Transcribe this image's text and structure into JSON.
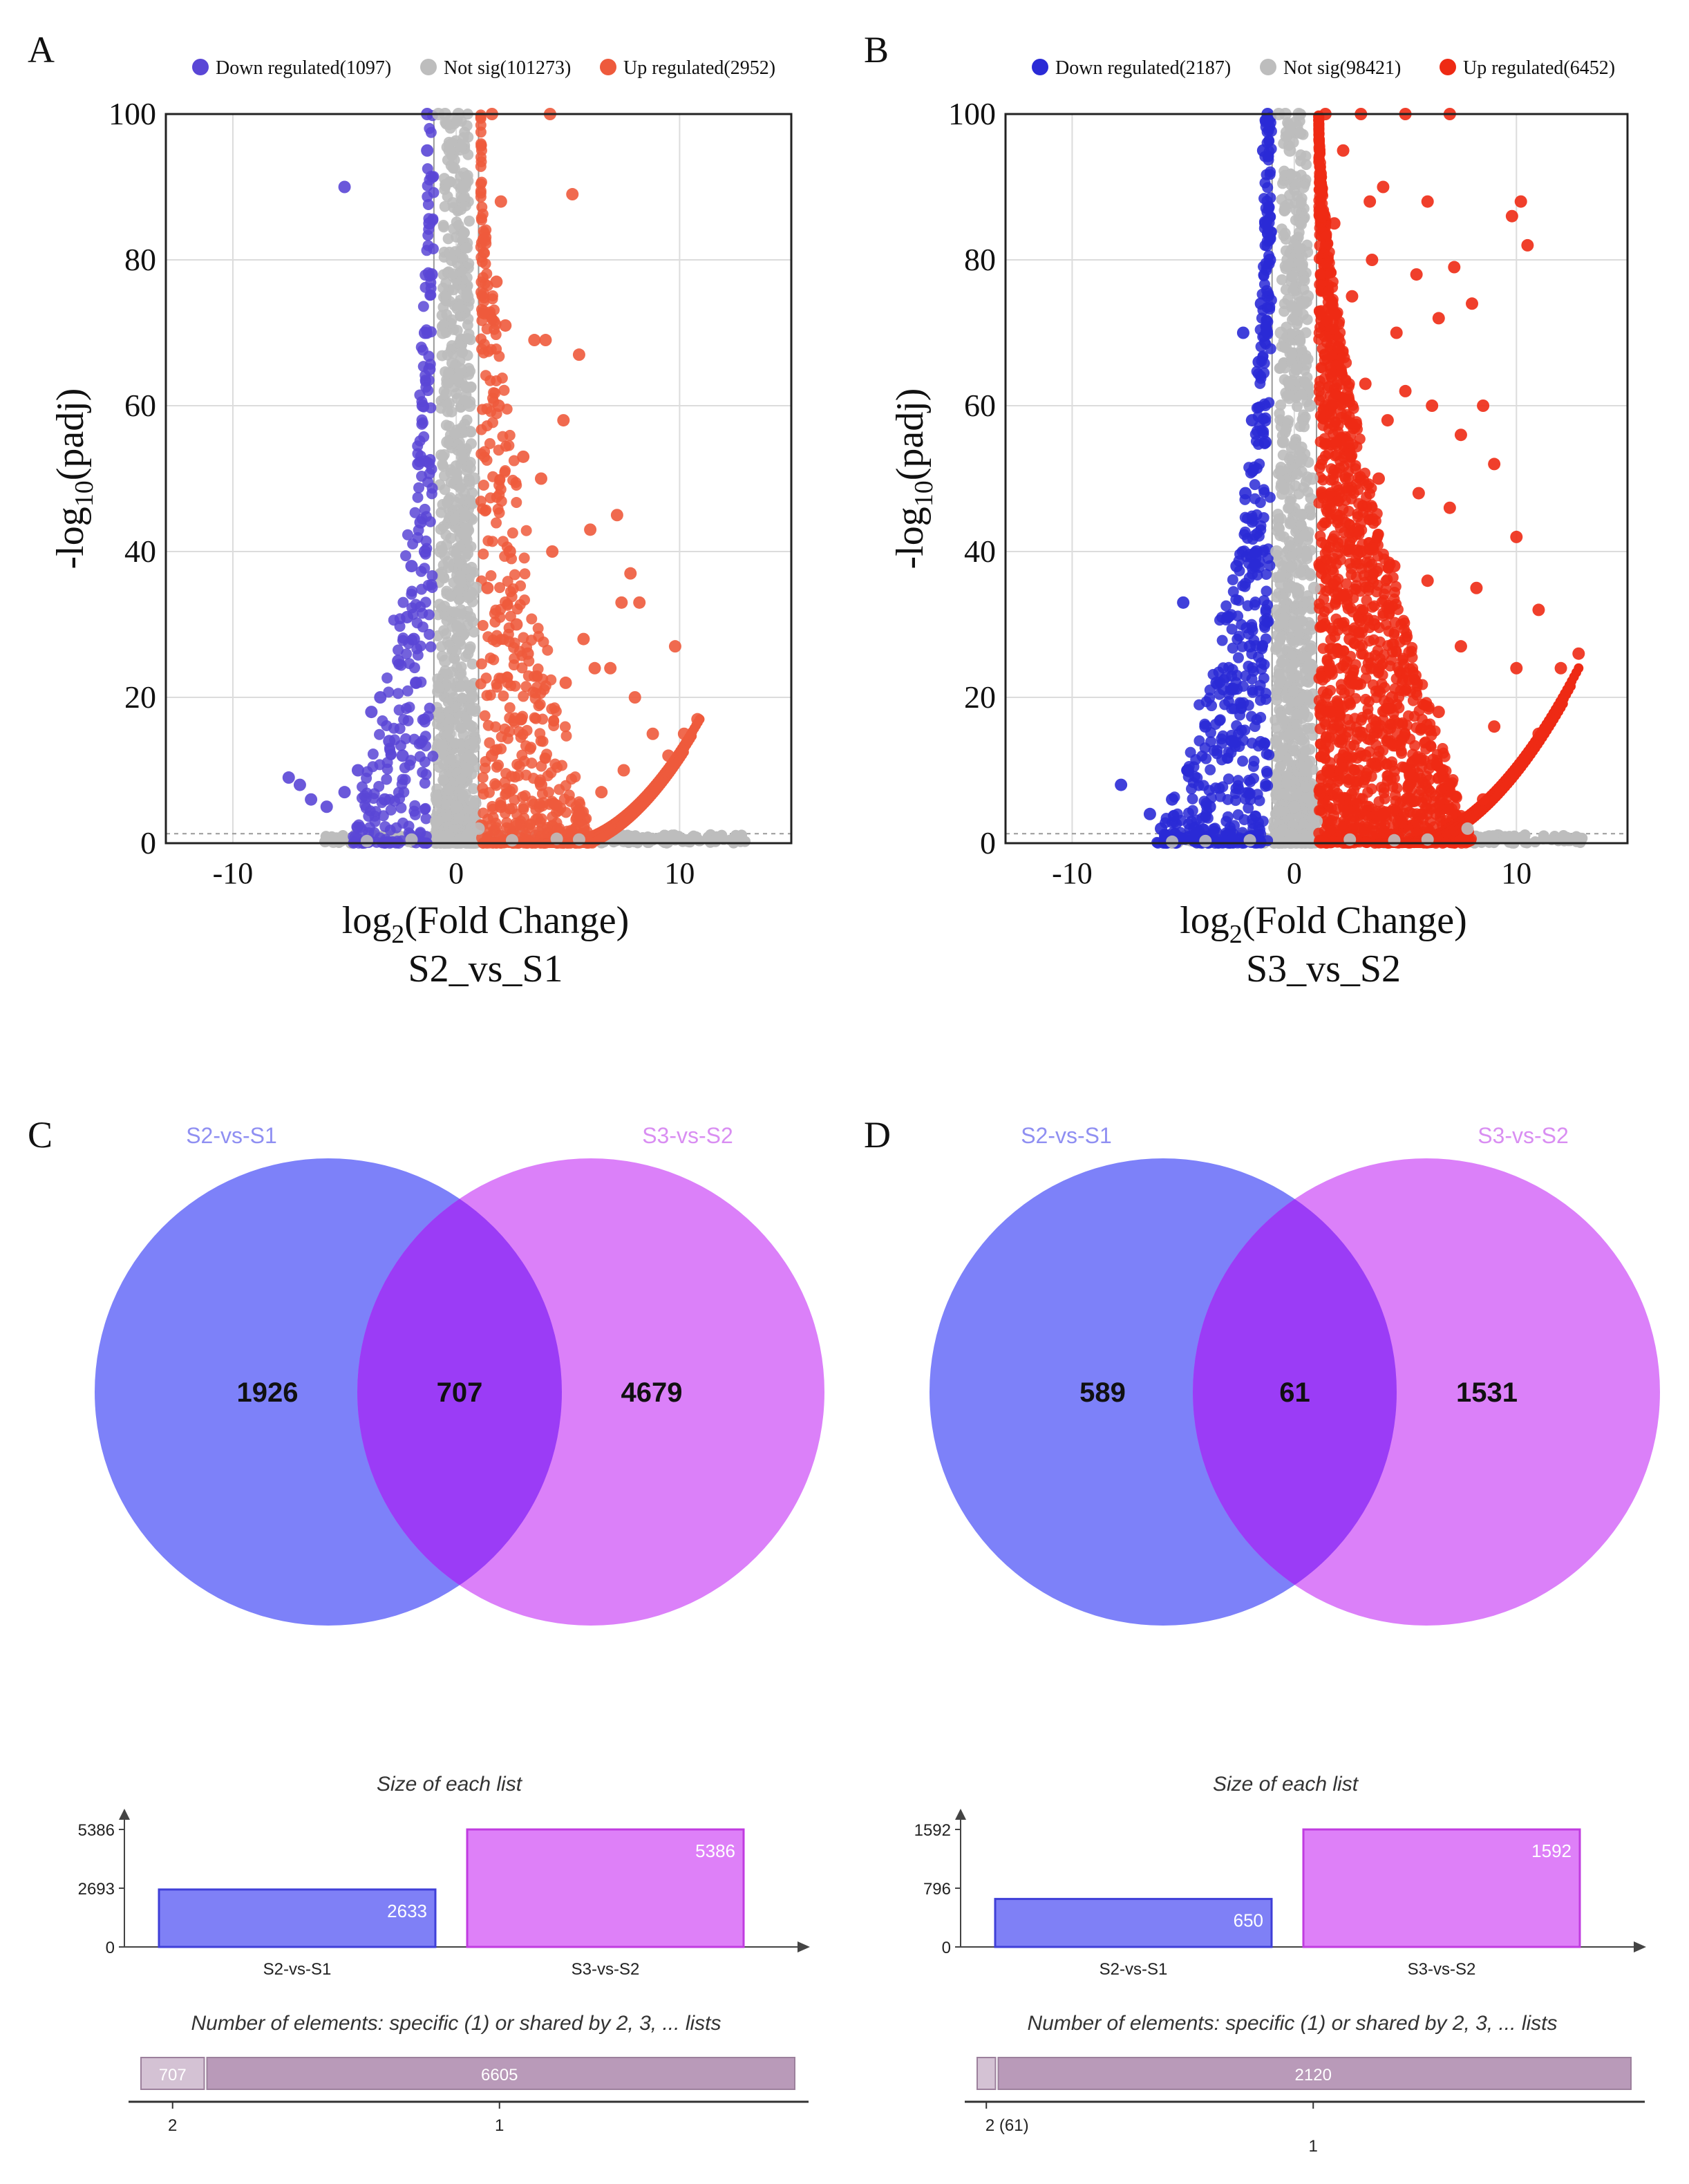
{
  "colors": {
    "down": "#5a46d6",
    "down_b": "#2a2ad6",
    "notsig": "#bdbdbd",
    "up": "#ee5a3c",
    "up_b": "#ee2a14",
    "venn_left": "#6b6ff8",
    "venn_right": "#d66ef8",
    "venn_overlap": "#9b3cf6",
    "venn_label_left": "#8f8ff2",
    "venn_label_right": "#d98ef2",
    "bar_left": "#7f80f6",
    "bar_right": "#de80f8",
    "strip_light": "#d4c2d4",
    "strip_dark": "#b99ab9"
  },
  "chart_data": [
    {
      "panel": "A",
      "type": "scatter",
      "title": "S2_vs_S1",
      "xlabel_main": "log",
      "xlabel_sub": "2",
      "xlabel_tail": "(Fold Change)",
      "ylabel_main": "-log",
      "ylabel_sub": "10",
      "ylabel_tail": "(padj)",
      "xlim": [
        -13,
        15
      ],
      "ylim": [
        0,
        100
      ],
      "xticks": [
        -10,
        0,
        10
      ],
      "yticks": [
        0,
        20,
        40,
        60,
        80,
        100
      ],
      "xtick_labels": [
        "-10",
        "0",
        "10"
      ],
      "ytick_labels": [
        "0",
        "20",
        "40",
        "60",
        "80",
        "100"
      ],
      "grid": true,
      "fc_threshold": 1,
      "padj_line": 1.3,
      "legend": [
        {
          "label": "Down regulated(1097)",
          "group": "down"
        },
        {
          "label": "Not sig(101273)",
          "group": "notsig"
        },
        {
          "label": "Up regulated(2952)",
          "group": "up"
        }
      ],
      "series": [
        {
          "name": "Down regulated",
          "points": [
            [
              -5.0,
              90
            ],
            [
              -7.5,
              9
            ],
            [
              -7.0,
              8
            ],
            [
              -6.5,
              6
            ],
            [
              -5.8,
              5
            ],
            [
              -5.0,
              7
            ],
            [
              -4.4,
              10
            ],
            [
              -3.8,
              18
            ],
            [
              -3.4,
              20
            ],
            [
              -3.0,
              14
            ],
            [
              -2.6,
              25
            ],
            [
              -2.2,
              31
            ],
            [
              -2.0,
              38
            ],
            [
              -1.7,
              52
            ],
            [
              -1.5,
              60
            ],
            [
              -1.4,
              70
            ],
            [
              -1.3,
              100
            ],
            [
              -1.2,
              85
            ],
            [
              -1.6,
              44
            ],
            [
              -1.9,
              28
            ],
            [
              -2.4,
              12
            ],
            [
              -3.2,
              6
            ],
            [
              -1.3,
              95
            ],
            [
              -1.1,
              78
            ],
            [
              -1.2,
              65
            ],
            [
              -1.4,
              40
            ],
            [
              -1.8,
              22
            ]
          ]
        },
        {
          "name": "Not sig",
          "points": [
            [
              -0.8,
              100
            ],
            [
              -0.5,
              100
            ],
            [
              -0.3,
              95
            ],
            [
              0.1,
              100
            ],
            [
              0.3,
              90
            ],
            [
              -0.2,
              80
            ],
            [
              0.5,
              75
            ],
            [
              -0.6,
              70
            ],
            [
              0.2,
              65
            ],
            [
              0.6,
              60
            ],
            [
              -0.4,
              55
            ],
            [
              0.8,
              50
            ],
            [
              0.4,
              45
            ],
            [
              -0.7,
              40
            ],
            [
              0.9,
              35
            ],
            [
              0.1,
              30
            ],
            [
              -0.5,
              25
            ],
            [
              0.7,
              20
            ],
            [
              -0.3,
              15
            ],
            [
              0.5,
              10
            ],
            [
              0,
              5
            ],
            [
              -0.9,
              3
            ],
            [
              1.0,
              2
            ],
            [
              -2,
              0.5
            ],
            [
              -4,
              0.3
            ],
            [
              2.5,
              0.4
            ],
            [
              4.5,
              0.6
            ],
            [
              7.5,
              0.3
            ],
            [
              -5.5,
              0.2
            ],
            [
              5.5,
              0.5
            ]
          ]
        },
        {
          "name": "Up regulated",
          "points": [
            [
              5.2,
              89
            ],
            [
              1.6,
              100
            ],
            [
              4.2,
              100
            ],
            [
              2.0,
              88
            ],
            [
              1.8,
              77
            ],
            [
              3.5,
              69
            ],
            [
              4.0,
              69
            ],
            [
              5.5,
              67
            ],
            [
              2.2,
              71
            ],
            [
              1.9,
              60
            ],
            [
              4.8,
              58
            ],
            [
              3.0,
              53
            ],
            [
              3.8,
              50
            ],
            [
              7.2,
              45
            ],
            [
              6.0,
              43
            ],
            [
              4.3,
              40
            ],
            [
              7.8,
              37
            ],
            [
              7.4,
              33
            ],
            [
              8.2,
              33
            ],
            [
              2.7,
              30
            ],
            [
              5.7,
              28
            ],
            [
              9.8,
              27
            ],
            [
              6.2,
              24
            ],
            [
              6.9,
              24
            ],
            [
              4.9,
              22
            ],
            [
              8.0,
              20
            ],
            [
              8.8,
              15
            ],
            [
              9.5,
              12
            ],
            [
              10.2,
              15
            ],
            [
              10.8,
              17
            ],
            [
              7.5,
              10
            ],
            [
              6.5,
              7
            ],
            [
              5.5,
              4
            ],
            [
              3.2,
              26
            ],
            [
              2.4,
              40
            ],
            [
              2.9,
              17
            ],
            [
              3.8,
              8
            ],
            [
              1.6,
              12
            ],
            [
              2.0,
              5
            ],
            [
              1.4,
              35
            ]
          ]
        }
      ]
    },
    {
      "panel": "B",
      "type": "scatter",
      "title": "S3_vs_S2",
      "xlabel_main": "log",
      "xlabel_sub": "2",
      "xlabel_tail": "(Fold Change)",
      "ylabel_main": "-log",
      "ylabel_sub": "10",
      "ylabel_tail": "(padj)",
      "xlim": [
        -13,
        15
      ],
      "ylim": [
        0,
        100
      ],
      "xticks": [
        -10,
        0,
        10
      ],
      "yticks": [
        0,
        20,
        40,
        60,
        80,
        100
      ],
      "xtick_labels": [
        "-10",
        "0",
        "10"
      ],
      "ytick_labels": [
        "0",
        "20",
        "40",
        "60",
        "80",
        "100"
      ],
      "grid": true,
      "fc_threshold": 1,
      "padj_line": 1.3,
      "legend": [
        {
          "label": "Down regulated(2187)",
          "group": "down"
        },
        {
          "label": "Not sig(98421)",
          "group": "notsig"
        },
        {
          "label": "Up regulated(6452)",
          "group": "up"
        }
      ],
      "series": [
        {
          "name": "Down regulated",
          "points": [
            [
              -2.3,
              70
            ],
            [
              -5.0,
              33
            ],
            [
              -7.8,
              8
            ],
            [
              -6.5,
              4
            ],
            [
              -5.5,
              6
            ],
            [
              -4.8,
              10
            ],
            [
              -4.0,
              16
            ],
            [
              -3.5,
              22
            ],
            [
              -3.0,
              31
            ],
            [
              -2.6,
              38
            ],
            [
              -2.2,
              48
            ],
            [
              -1.9,
              58
            ],
            [
              -1.6,
              66
            ],
            [
              -1.5,
              74
            ],
            [
              -1.3,
              85
            ],
            [
              -1.2,
              100
            ],
            [
              -1.4,
              95
            ],
            [
              -1.1,
              80
            ],
            [
              -1.7,
              40
            ],
            [
              -2.0,
              27
            ],
            [
              -2.8,
              14
            ],
            [
              -3.8,
              5
            ],
            [
              -4.5,
              2
            ],
            [
              -6.0,
              2
            ],
            [
              -1.3,
              55
            ]
          ]
        },
        {
          "name": "Not sig",
          "points": [
            [
              -0.7,
              100
            ],
            [
              -0.4,
              100
            ],
            [
              -0.2,
              95
            ],
            [
              0.2,
              100
            ],
            [
              0.4,
              90
            ],
            [
              -0.3,
              80
            ],
            [
              0.6,
              75
            ],
            [
              -0.6,
              70
            ],
            [
              0.1,
              65
            ],
            [
              0.7,
              60
            ],
            [
              -0.5,
              55
            ],
            [
              0.8,
              50
            ],
            [
              0.3,
              45
            ],
            [
              -0.8,
              40
            ],
            [
              0.9,
              35
            ],
            [
              0.0,
              30
            ],
            [
              -0.5,
              25
            ],
            [
              0.6,
              20
            ],
            [
              -0.2,
              15
            ],
            [
              0.5,
              10
            ],
            [
              0.0,
              5
            ],
            [
              1.0,
              3
            ],
            [
              -2,
              0.4
            ],
            [
              -4,
              0.3
            ],
            [
              2.5,
              0.5
            ],
            [
              4.5,
              0.4
            ],
            [
              7.8,
              2
            ],
            [
              -5.5,
              0.2
            ],
            [
              6.0,
              0.5
            ]
          ]
        },
        {
          "name": "Up regulated",
          "points": [
            [
              1.4,
              100
            ],
            [
              3.0,
              100
            ],
            [
              5.0,
              100
            ],
            [
              7.0,
              100
            ],
            [
              2.2,
              95
            ],
            [
              4.0,
              90
            ],
            [
              6.0,
              88
            ],
            [
              9.8,
              86
            ],
            [
              10.2,
              88
            ],
            [
              10.5,
              82
            ],
            [
              1.8,
              85
            ],
            [
              3.5,
              80
            ],
            [
              5.5,
              78
            ],
            [
              7.2,
              79
            ],
            [
              8.0,
              74
            ],
            [
              2.6,
              75
            ],
            [
              4.6,
              70
            ],
            [
              6.5,
              72
            ],
            [
              2.0,
              68
            ],
            [
              3.2,
              63
            ],
            [
              5.0,
              62
            ],
            [
              6.2,
              60
            ],
            [
              8.5,
              60
            ],
            [
              4.2,
              58
            ],
            [
              7.5,
              56
            ],
            [
              9.0,
              52
            ],
            [
              2.4,
              55
            ],
            [
              3.8,
              50
            ],
            [
              5.6,
              48
            ],
            [
              7.0,
              46
            ],
            [
              10.0,
              42
            ],
            [
              1.9,
              45
            ],
            [
              3.0,
              40
            ],
            [
              4.5,
              38
            ],
            [
              6.0,
              36
            ],
            [
              8.2,
              35
            ],
            [
              11.0,
              32
            ],
            [
              2.2,
              34
            ],
            [
              3.6,
              30
            ],
            [
              5.0,
              28
            ],
            [
              7.5,
              27
            ],
            [
              10.0,
              24
            ],
            [
              12.0,
              24
            ],
            [
              12.8,
              26
            ],
            [
              2.8,
              22
            ],
            [
              4.4,
              20
            ],
            [
              6.5,
              18
            ],
            [
              9.0,
              16
            ],
            [
              11.0,
              15
            ],
            [
              1.6,
              18
            ],
            [
              3.2,
              12
            ],
            [
              5.2,
              10
            ],
            [
              7.0,
              8
            ],
            [
              8.5,
              6
            ],
            [
              2.0,
              6
            ],
            [
              4.0,
              4
            ],
            [
              1.5,
              10
            ],
            [
              2.5,
              28
            ],
            [
              1.7,
              60
            ],
            [
              3.4,
              88
            ]
          ]
        }
      ]
    },
    {
      "panel": "C",
      "type": "venn",
      "set_labels": [
        "S2-vs-S1",
        "S3-vs-S2"
      ],
      "only_left": "1926",
      "overlap": "707",
      "only_right": "4679"
    },
    {
      "panel": "D",
      "type": "venn",
      "set_labels": [
        "S2-vs-S1",
        "S3-vs-S2"
      ],
      "only_left": "589",
      "overlap": "61",
      "only_right": "1531"
    },
    {
      "panel": "C",
      "type": "bar",
      "title": "Size of each list",
      "categories": [
        "S2-vs-S1",
        "S3-vs-S2"
      ],
      "values": [
        2633,
        5386
      ],
      "value_labels": [
        "2633",
        "5386"
      ],
      "ylim": [
        0,
        5386
      ],
      "yticks": [
        0,
        2693,
        5386
      ],
      "ytick_labels": [
        "0",
        "2693",
        "5386"
      ],
      "strip_title": "Number of elements: specific (1) or shared by 2, 3, ... lists",
      "strip_values": [
        707,
        6605
      ],
      "strip_labels": [
        "707",
        "6605"
      ],
      "strip_axis_labels": [
        "2",
        "1"
      ]
    },
    {
      "panel": "D",
      "type": "bar",
      "title": "Size of each list",
      "categories": [
        "S2-vs-S1",
        "S3-vs-S2"
      ],
      "values": [
        650,
        1592
      ],
      "value_labels": [
        "650",
        "1592"
      ],
      "ylim": [
        0,
        1592
      ],
      "yticks": [
        0,
        796,
        1592
      ],
      "ytick_labels": [
        "0",
        "796",
        "1592"
      ],
      "strip_title": "Number of elements: specific (1) or shared by 2, 3, ... lists",
      "strip_values": [
        61,
        2120
      ],
      "strip_labels": [
        "",
        "2120"
      ],
      "strip_axis_labels": [
        "2 (61)",
        "1"
      ]
    }
  ],
  "panel_letters": [
    "A",
    "B",
    "C",
    "D"
  ]
}
